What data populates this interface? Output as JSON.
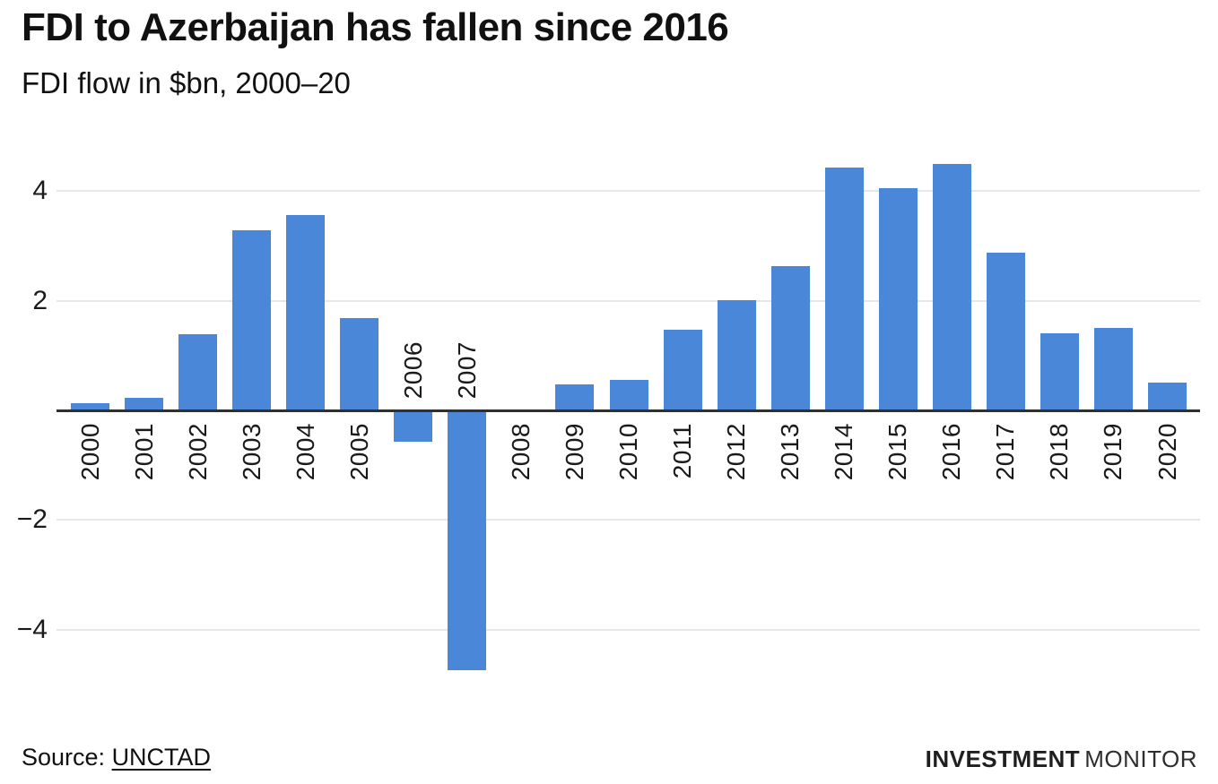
{
  "header": {
    "title": "FDI to Azerbaijan has fallen since 2016",
    "subtitle": "FDI flow in $bn, 2000–20"
  },
  "footer": {
    "source_prefix": "Source: ",
    "source_link": "UNCTAD",
    "brand_bold": "INVESTMENT",
    "brand_light": "MONITOR"
  },
  "colors": {
    "bar": "#4a87d8",
    "axis": "#303030",
    "gridline": "#e7e7e7",
    "text": "#1a1a1a"
  },
  "chart_data": {
    "type": "bar",
    "title": "FDI to Azerbaijan has fallen since 2016",
    "subtitle": "FDI flow in $bn, 2000–20",
    "xlabel": "",
    "ylabel": "FDI flow ($bn)",
    "categories": [
      "2000",
      "2001",
      "2002",
      "2003",
      "2004",
      "2005",
      "2006",
      "2007",
      "2008",
      "2009",
      "2010",
      "2011",
      "2012",
      "2013",
      "2014",
      "2015",
      "2016",
      "2017",
      "2018",
      "2019",
      "2020"
    ],
    "values": [
      0.13,
      0.23,
      1.39,
      3.29,
      3.56,
      1.68,
      -0.58,
      -4.75,
      0.01,
      0.47,
      0.56,
      1.47,
      2.01,
      2.63,
      4.43,
      4.05,
      4.5,
      2.87,
      1.4,
      1.5,
      0.51
    ],
    "yticks": [
      4,
      2,
      -2,
      -4
    ],
    "ytick_labels": [
      "4",
      "2",
      "−2",
      "−4"
    ],
    "ylim": [
      -5.2,
      5.0
    ],
    "grid": true,
    "legend": "none",
    "bar_color": "#4a87d8"
  }
}
